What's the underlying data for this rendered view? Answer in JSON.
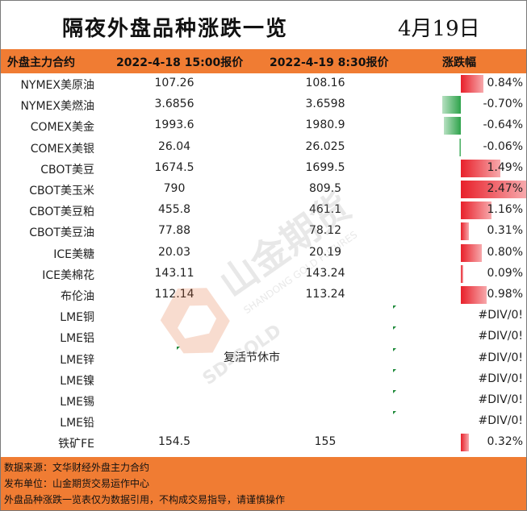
{
  "title": "隔夜外盘品种涨跌一览",
  "date": "4月19日",
  "header": {
    "contract": "外盘主力合约",
    "col1": "2022-4-18 15:00报价",
    "col2": "2022-4-19 8:30报价",
    "change": "涨跌幅"
  },
  "rows": [
    {
      "name": "NYMEX美原油",
      "v1": "107.26",
      "v2": "108.16",
      "pct": "0.84%",
      "change": 0.84
    },
    {
      "name": "NYMEX美燃油",
      "v1": "3.6856",
      "v2": "3.6598",
      "pct": "-0.70%",
      "change": -0.7
    },
    {
      "name": "COMEX美金",
      "v1": "1993.6",
      "v2": "1980.9",
      "pct": "-0.64%",
      "change": -0.64
    },
    {
      "name": "COMEX美银",
      "v1": "26.04",
      "v2": "26.025",
      "pct": "-0.06%",
      "change": -0.06
    },
    {
      "name": "CBOT美豆",
      "v1": "1674.5",
      "v2": "1699.5",
      "pct": "1.49%",
      "change": 1.49
    },
    {
      "name": "CBOT美玉米",
      "v1": "790",
      "v2": "809.5",
      "pct": "2.47%",
      "change": 2.47
    },
    {
      "name": "CBOT美豆粕",
      "v1": "455.8",
      "v2": "461.1",
      "pct": "1.16%",
      "change": 1.16
    },
    {
      "name": "CBOT美豆油",
      "v1": "77.88",
      "v2": "78.12",
      "pct": "0.31%",
      "change": 0.31
    },
    {
      "name": "ICE美糖",
      "v1": "20.03",
      "v2": "20.19",
      "pct": "0.80%",
      "change": 0.8
    },
    {
      "name": "ICE美棉花",
      "v1": "143.11",
      "v2": "143.24",
      "pct": "0.09%",
      "change": 0.09
    },
    {
      "name": "布伦油",
      "v1": "112.14",
      "v2": "113.24",
      "pct": "0.98%",
      "change": 0.98
    },
    {
      "name": "LME铜",
      "v1": "",
      "v2": "",
      "pct": "#DIV/0!",
      "change": null
    },
    {
      "name": "LME铝",
      "v1": "",
      "v2": "",
      "pct": "#DIV/0!",
      "change": null
    },
    {
      "name": "LME锌",
      "v1": "",
      "v2": "",
      "pct": "#DIV/0!",
      "change": null
    },
    {
      "name": "LME镍",
      "v1": "",
      "v2": "",
      "pct": "#DIV/0!",
      "change": null
    },
    {
      "name": "LME锡",
      "v1": "",
      "v2": "",
      "pct": "#DIV/0!",
      "change": null
    },
    {
      "name": "LME铅",
      "v1": "",
      "v2": "",
      "pct": "#DIV/0!",
      "change": null
    },
    {
      "name": "铁矿FE",
      "v1": "154.5",
      "v2": "155",
      "pct": "0.32%",
      "change": 0.32
    }
  ],
  "holiday_note": "复活节休市",
  "watermark": {
    "cn": "山金期货",
    "en1": "SD-GOLD",
    "en2": "SHANDONG GOLD FUTURES"
  },
  "footer": {
    "line1": "数据来源：文华财经外盘主力合约",
    "line2": "发布单位：山金期货交易运作中心",
    "line3": "外盘品种涨跌一览表仅为数据引用，不构成交易指导，请谨慎操作"
  },
  "colors": {
    "accent": "#f07c33",
    "up": "#e8202a",
    "down": "#2ea34b"
  }
}
